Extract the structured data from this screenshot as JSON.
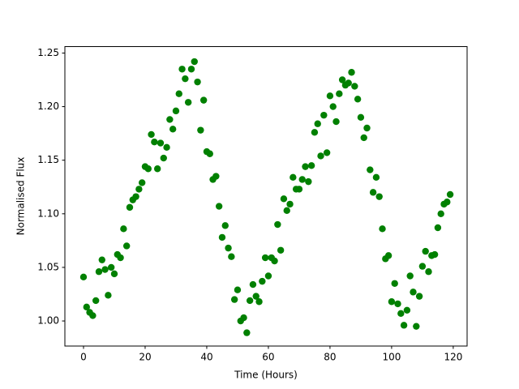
{
  "chart_data": {
    "type": "scatter",
    "xlabel": "Time (Hours)",
    "ylabel": "Normalised Flux",
    "color": "#008000",
    "x": [
      0,
      1,
      2,
      3,
      4,
      5,
      6,
      7,
      8,
      9,
      10,
      11,
      12,
      13,
      14,
      15,
      16,
      17,
      18,
      19,
      20,
      21,
      22,
      23,
      24,
      25,
      26,
      27,
      28,
      29,
      30,
      31,
      32,
      33,
      34,
      35,
      36,
      37,
      38,
      39,
      40,
      41,
      42,
      43,
      44,
      45,
      46,
      47,
      48,
      49,
      50,
      51,
      52,
      53,
      54,
      55,
      56,
      57,
      58,
      59,
      60,
      61,
      62,
      63,
      64,
      65,
      66,
      67,
      68,
      69,
      70,
      71,
      72,
      73,
      74,
      75,
      76,
      77,
      78,
      79,
      80,
      81,
      82,
      83,
      84,
      85,
      86,
      87,
      88,
      89,
      90,
      91,
      92,
      93,
      94,
      95,
      96,
      97,
      98,
      99,
      100,
      101,
      102,
      103,
      104,
      105,
      106,
      107,
      108,
      109,
      110,
      111,
      112,
      113,
      114,
      115,
      116,
      117,
      118,
      119
    ],
    "values": [
      1.041,
      1.013,
      1.008,
      1.005,
      1.019,
      1.046,
      1.057,
      1.048,
      1.024,
      1.05,
      1.044,
      1.062,
      1.059,
      1.086,
      1.07,
      1.106,
      1.113,
      1.116,
      1.123,
      1.129,
      1.144,
      1.142,
      1.174,
      1.167,
      1.142,
      1.166,
      1.152,
      1.162,
      1.188,
      1.179,
      1.196,
      1.212,
      1.235,
      1.226,
      1.204,
      1.235,
      1.242,
      1.223,
      1.178,
      1.206,
      1.158,
      1.156,
      1.132,
      1.135,
      1.107,
      1.078,
      1.089,
      1.068,
      1.06,
      1.02,
      1.029,
      1.0,
      1.003,
      0.989,
      1.019,
      1.034,
      1.023,
      1.018,
      1.037,
      1.059,
      1.042,
      1.059,
      1.056,
      1.09,
      1.066,
      1.114,
      1.103,
      1.109,
      1.134,
      1.123,
      1.123,
      1.132,
      1.144,
      1.13,
      1.145,
      1.176,
      1.184,
      1.154,
      1.192,
      1.157,
      1.21,
      1.2,
      1.186,
      1.212,
      1.225,
      1.22,
      1.222,
      1.232,
      1.219,
      1.207,
      1.19,
      1.171,
      1.18,
      1.141,
      1.12,
      1.134,
      1.116,
      1.086,
      1.058,
      1.061,
      1.018,
      1.035,
      1.016,
      1.007,
      0.996,
      1.01,
      1.042,
      1.027,
      0.995,
      1.023,
      1.051,
      1.065,
      1.046,
      1.061,
      1.062,
      1.087,
      1.1,
      1.109,
      1.111,
      1.118
    ],
    "xlim": [
      -6.05,
      124.5
    ],
    "xticks": [
      0,
      20,
      40,
      60,
      80,
      100,
      120
    ],
    "ylim": [
      0.9766,
      1.256
    ],
    "yticks": [
      {
        "value": 1,
        "label": "1.00"
      },
      1.05,
      {
        "value": 1.1,
        "label": "1.10"
      },
      1.15,
      {
        "value": 1.2,
        "label": "1.20"
      },
      1.25
    ]
  }
}
